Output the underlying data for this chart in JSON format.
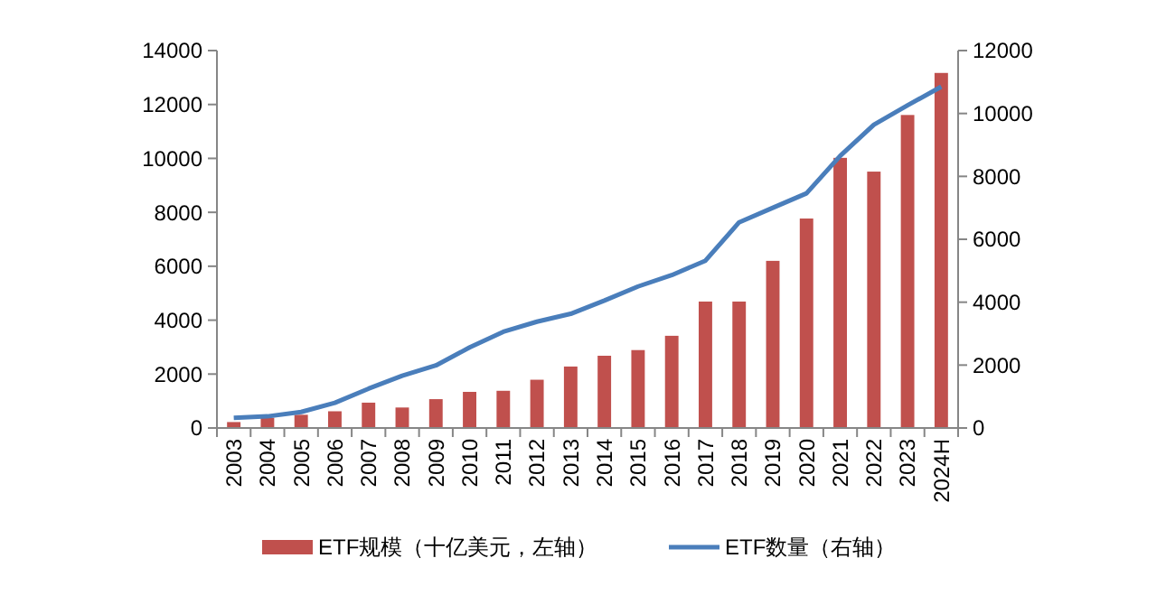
{
  "chart_data": {
    "type": "bar",
    "categories": [
      "2003",
      "2004",
      "2005",
      "2006",
      "2007",
      "2008",
      "2009",
      "2010",
      "2011",
      "2012",
      "2013",
      "2014",
      "2015",
      "2016",
      "2017",
      "2018",
      "2019",
      "2020",
      "2021",
      "2022",
      "2023",
      "2024H"
    ],
    "series": [
      {
        "name": "ETF规模（十亿美元，左轴）",
        "color": "#c0504d",
        "values": [
          220,
          380,
          490,
          620,
          940,
          760,
          1070,
          1340,
          1380,
          1790,
          2280,
          2680,
          2890,
          3420,
          4690,
          4690,
          6200,
          7770,
          10020,
          9510,
          11610,
          13170
        ]
      },
      {
        "name": "ETF数量（右轴）",
        "type": "line",
        "axis": "y2",
        "color": "#4a7ebb",
        "values": [
          320,
          370,
          510,
          800,
          1250,
          1660,
          1990,
          2560,
          3060,
          3380,
          3630,
          4050,
          4500,
          4860,
          5320,
          6540,
          7000,
          7460,
          8650,
          9640,
          10260,
          10850
        ]
      }
    ],
    "ylim": [
      0,
      14000
    ],
    "yticks": [
      0,
      2000,
      4000,
      6000,
      8000,
      10000,
      12000,
      14000
    ],
    "y2lim": [
      0,
      12000
    ],
    "y2ticks": [
      0,
      2000,
      4000,
      6000,
      8000,
      10000,
      12000
    ],
    "legend": "bottom",
    "grid": false,
    "marker": "none"
  }
}
